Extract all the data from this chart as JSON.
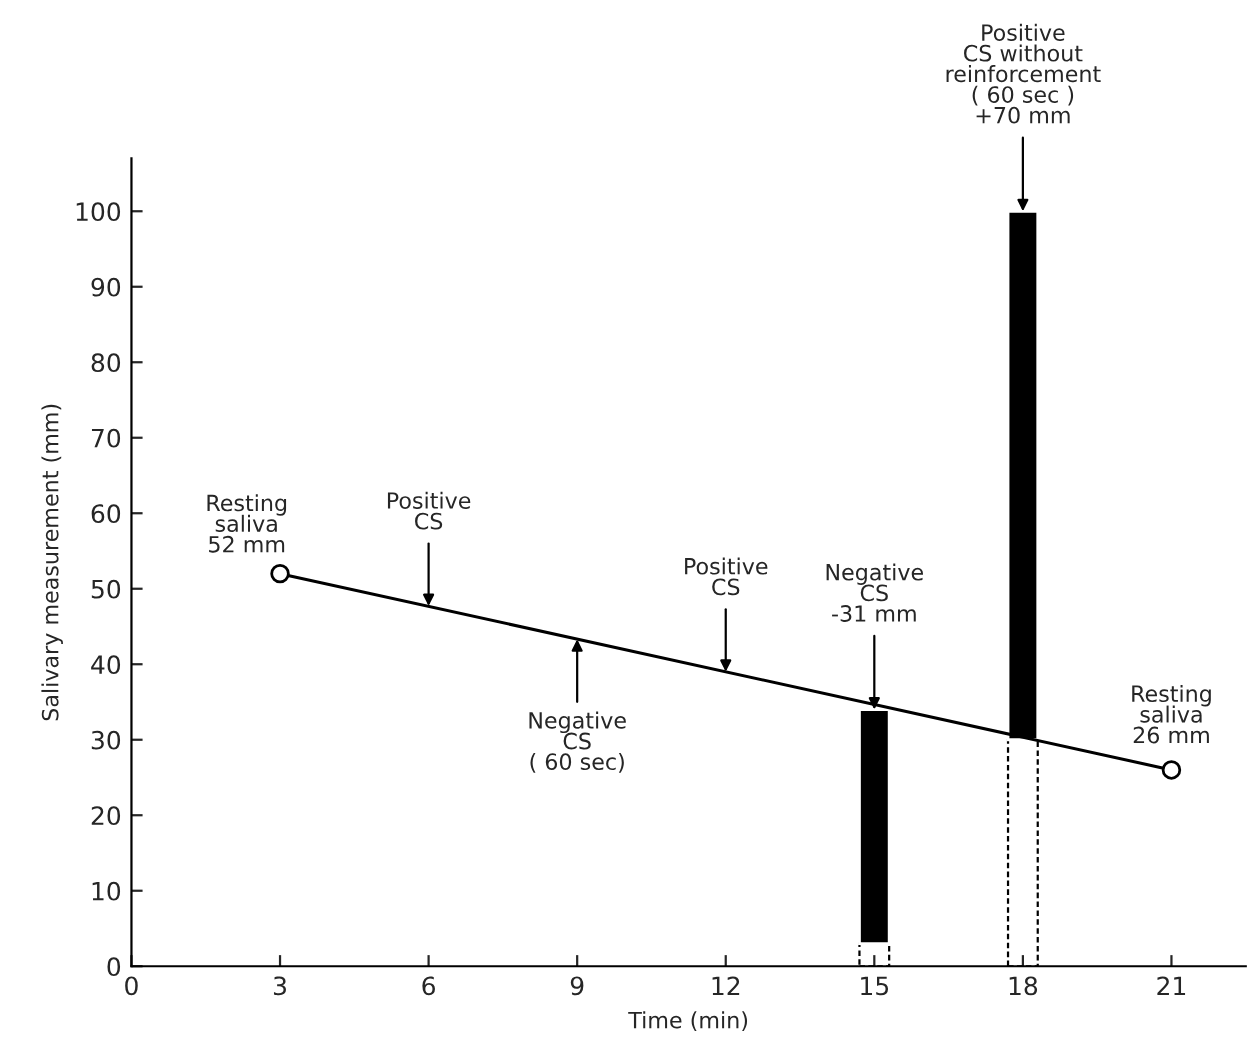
{
  "chart_data": {
    "type": "line",
    "xlabel": "Time (min)",
    "ylabel": "Salivary measurement (mm)",
    "xlim": [
      0,
      22.5
    ],
    "ylim": [
      0,
      107
    ],
    "xticks": [
      0,
      3,
      6,
      9,
      12,
      15,
      18,
      21
    ],
    "yticks": [
      0,
      10,
      20,
      30,
      40,
      50,
      60,
      70,
      80,
      90,
      100
    ],
    "grid": false,
    "legend": false,
    "stacked": true,
    "series": [
      {
        "x": [
          3,
          21
        ],
        "values": [
          52,
          26
        ],
        "color": "#000000",
        "marker": "circle",
        "line_style": "solid"
      },
      {
        "type": "bar",
        "x": [
          15,
          18
        ],
        "values": [
          3,
          30
        ],
        "color": "#000000",
        "line_style": "dashed"
      },
      {
        "type": "bar",
        "x": [
          15,
          18
        ],
        "values": [
          31,
          70
        ],
        "color": "#000000",
        "line_style": "solid"
      }
    ],
    "annotations": [
      {
        "text": "Resting\nsaliva\n52 mm",
        "x": 3,
        "y": 52
      },
      {
        "text": "Positive\nCS",
        "x": 6,
        "y": 47.7
      },
      {
        "text": "Negative\nCS\n( 60 sec)",
        "x": 9,
        "y": 43.3
      },
      {
        "text": "Positive\nCS",
        "x": 12,
        "y": 39
      },
      {
        "text": "Negative\nCS\n-31 mm",
        "x": 15,
        "y": 34
      },
      {
        "text": "Positive\nCS without\nreinforcement\n( 60 sec )\n+70 mm",
        "x": 18,
        "y": 100
      },
      {
        "text": "Resting\nsaliva\n26 mm",
        "x": 21,
        "y": 26
      }
    ]
  }
}
